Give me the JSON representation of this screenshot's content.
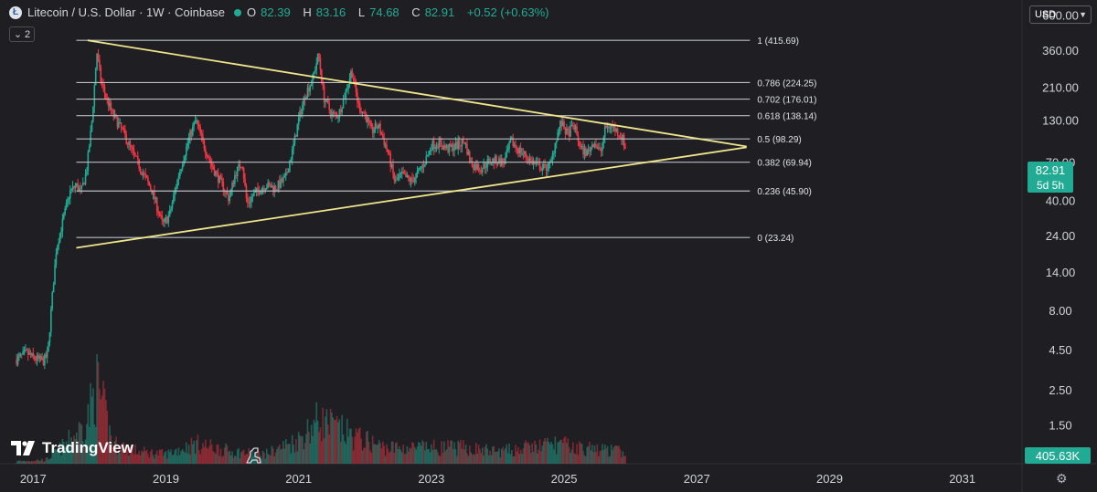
{
  "header": {
    "symbol_title": "Litecoin / U.S. Dollar · 1W · Coinbase",
    "ohlc": [
      {
        "label": "O",
        "value": "82.39"
      },
      {
        "label": "H",
        "value": "83.16"
      },
      {
        "label": "L",
        "value": "74.68"
      },
      {
        "label": "C",
        "value": "82.91"
      }
    ],
    "change": "+0.52 (+0.63%)",
    "indicator_count": "2",
    "currency": "USD"
  },
  "branding": {
    "logo_text": "TradingView"
  },
  "colors": {
    "background": "#1f1f23",
    "up": "#22ab94",
    "down": "#f23645",
    "trendline": "#f0e68c",
    "fib_line": "#b9bcc4",
    "price_badge": "#22ab94",
    "text": "#d1d4dc"
  },
  "chart_data": {
    "type": "candlestick",
    "title": "Litecoin / U.S. Dollar · 1W · Coinbase",
    "y_scale": "log",
    "ylim": [
      0.85,
      750
    ],
    "xlim": [
      2016.5,
      2031.9
    ],
    "y_ticks": [
      "600.00",
      "360.00",
      "210.00",
      "130.00",
      "70.00",
      "40.00",
      "24.00",
      "14.00",
      "8.00",
      "4.50",
      "2.50",
      "1.50"
    ],
    "x_ticks": [
      "2017",
      "2019",
      "2021",
      "2023",
      "2025",
      "2027",
      "2029",
      "2031"
    ],
    "price_path": [
      [
        2016.75,
        3.9
      ],
      [
        2016.9,
        4.3
      ],
      [
        2017.0,
        4.0
      ],
      [
        2017.15,
        3.8
      ],
      [
        2017.22,
        4.2
      ],
      [
        2017.27,
        8.0
      ],
      [
        2017.35,
        20.0
      ],
      [
        2017.45,
        30.0
      ],
      [
        2017.55,
        45.0
      ],
      [
        2017.65,
        50.0
      ],
      [
        2017.72,
        45.0
      ],
      [
        2017.8,
        60.0
      ],
      [
        2017.88,
        120.0
      ],
      [
        2017.96,
        350.0
      ],
      [
        2018.02,
        230.0
      ],
      [
        2018.1,
        180.0
      ],
      [
        2018.2,
        140.0
      ],
      [
        2018.35,
        110.0
      ],
      [
        2018.5,
        80.0
      ],
      [
        2018.65,
        60.0
      ],
      [
        2018.8,
        45.0
      ],
      [
        2018.95,
        28.0
      ],
      [
        2019.05,
        32.0
      ],
      [
        2019.2,
        60.0
      ],
      [
        2019.35,
        100.0
      ],
      [
        2019.45,
        130.0
      ],
      [
        2019.55,
        95.0
      ],
      [
        2019.7,
        65.0
      ],
      [
        2019.85,
        50.0
      ],
      [
        2019.95,
        41.0
      ],
      [
        2020.05,
        60.0
      ],
      [
        2020.15,
        70.0
      ],
      [
        2020.22,
        38.0
      ],
      [
        2020.35,
        45.0
      ],
      [
        2020.5,
        50.0
      ],
      [
        2020.65,
        48.0
      ],
      [
        2020.8,
        55.0
      ],
      [
        2020.9,
        80.0
      ],
      [
        2021.0,
        130.0
      ],
      [
        2021.1,
        190.0
      ],
      [
        2021.2,
        230.0
      ],
      [
        2021.3,
        340.0
      ],
      [
        2021.38,
        180.0
      ],
      [
        2021.5,
        140.0
      ],
      [
        2021.6,
        140.0
      ],
      [
        2021.7,
        190.0
      ],
      [
        2021.8,
        270.0
      ],
      [
        2021.9,
        160.0
      ],
      [
        2022.0,
        140.0
      ],
      [
        2022.1,
        110.0
      ],
      [
        2022.2,
        120.0
      ],
      [
        2022.35,
        80.0
      ],
      [
        2022.45,
        52.0
      ],
      [
        2022.55,
        58.0
      ],
      [
        2022.7,
        53.0
      ],
      [
        2022.8,
        60.0
      ],
      [
        2022.9,
        70.0
      ],
      [
        2023.0,
        90.0
      ],
      [
        2023.1,
        92.0
      ],
      [
        2023.25,
        85.0
      ],
      [
        2023.4,
        90.0
      ],
      [
        2023.5,
        95.0
      ],
      [
        2023.6,
        68.0
      ],
      [
        2023.75,
        64.0
      ],
      [
        2023.85,
        70.0
      ],
      [
        2023.95,
        72.0
      ],
      [
        2024.1,
        70.0
      ],
      [
        2024.2,
        95.0
      ],
      [
        2024.3,
        85.0
      ],
      [
        2024.45,
        75.0
      ],
      [
        2024.55,
        68.0
      ],
      [
        2024.7,
        64.0
      ],
      [
        2024.8,
        68.0
      ],
      [
        2024.88,
        100.0
      ],
      [
        2024.95,
        125.0
      ],
      [
        2025.05,
        105.0
      ],
      [
        2025.15,
        120.0
      ],
      [
        2025.25,
        85.0
      ],
      [
        2025.35,
        80.0
      ],
      [
        2025.45,
        95.0
      ],
      [
        2025.55,
        80.0
      ],
      [
        2025.62,
        115.0
      ],
      [
        2025.7,
        120.0
      ],
      [
        2025.8,
        110.0
      ],
      [
        2025.88,
        100.0
      ],
      [
        2025.93,
        82.91
      ]
    ],
    "volume_profile": [
      [
        2016.75,
        0.03
      ],
      [
        2017.2,
        0.05
      ],
      [
        2017.5,
        0.25
      ],
      [
        2017.8,
        0.5
      ],
      [
        2017.96,
        1.0
      ],
      [
        2018.2,
        0.25
      ],
      [
        2018.6,
        0.15
      ],
      [
        2019.0,
        0.12
      ],
      [
        2019.45,
        0.25
      ],
      [
        2020.0,
        0.15
      ],
      [
        2020.5,
        0.12
      ],
      [
        2021.0,
        0.3
      ],
      [
        2021.3,
        0.55
      ],
      [
        2021.8,
        0.35
      ],
      [
        2022.3,
        0.2
      ],
      [
        2022.8,
        0.2
      ],
      [
        2023.5,
        0.2
      ],
      [
        2024.0,
        0.15
      ],
      [
        2024.9,
        0.25
      ],
      [
        2025.2,
        0.2
      ],
      [
        2025.93,
        0.15
      ]
    ],
    "fibonacci": [
      {
        "ratio": "1",
        "price": 415.69,
        "label": "1 (415.69)"
      },
      {
        "ratio": "0.786",
        "price": 224.25,
        "label": "0.786 (224.25)"
      },
      {
        "ratio": "0.702",
        "price": 176.01,
        "label": "0.702 (176.01)"
      },
      {
        "ratio": "0.618",
        "price": 138.14,
        "label": "0.618 (138.14)"
      },
      {
        "ratio": "0.5",
        "price": 98.29,
        "label": "0.5 (98.29)"
      },
      {
        "ratio": "0.382",
        "price": 69.94,
        "label": "0.382 (69.94)"
      },
      {
        "ratio": "0.236",
        "price": 45.9,
        "label": "0.236 (45.90)"
      },
      {
        "ratio": "0",
        "price": 23.24,
        "label": "0 (23.24)"
      }
    ],
    "fib_range_years": [
      2017.65,
      2027.8
    ],
    "trendlines": [
      {
        "name": "upper-trendline",
        "from": [
          2017.82,
          415.69
        ],
        "to": [
          2027.75,
          88.0
        ]
      },
      {
        "name": "lower-trendline",
        "from": [
          2017.65,
          20.0
        ],
        "to": [
          2027.75,
          87.0
        ]
      }
    ],
    "last_price": {
      "value": "82.91",
      "countdown": "5d 5h",
      "price": 82.91
    },
    "volume_label": "405.63K"
  }
}
